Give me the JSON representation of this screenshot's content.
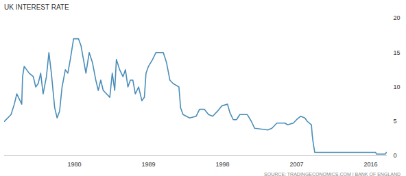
{
  "chart_data": {
    "type": "line",
    "title": "UK INTEREST RATE",
    "caption": "SOURCE: TRADINGECONOMICS.COM | BANK OF ENGLAND",
    "color": "#4a8db8",
    "grid": false,
    "x": [
      1971.5,
      1972.3,
      1972.7,
      1973.0,
      1973.4,
      1973.6,
      1973.7,
      1973.9,
      1974.5,
      1975.0,
      1975.3,
      1975.6,
      1975.9,
      1976.2,
      1976.6,
      1976.9,
      1977.2,
      1977.6,
      1977.9,
      1978.2,
      1978.5,
      1978.9,
      1979.2,
      1979.5,
      1979.9,
      1980.5,
      1980.8,
      1981.1,
      1981.4,
      1981.8,
      1982.2,
      1982.6,
      1982.9,
      1983.2,
      1983.5,
      1983.9,
      1984.3,
      1984.6,
      1984.9,
      1985.1,
      1985.5,
      1985.9,
      1986.2,
      1986.5,
      1986.8,
      1987.1,
      1987.4,
      1987.8,
      1988.2,
      1988.5,
      1988.7,
      1989.0,
      1989.5,
      1989.9,
      1990.8,
      1991.2,
      1991.6,
      1992.0,
      1992.7,
      1992.9,
      1993.2,
      1994.0,
      1994.8,
      1995.2,
      1995.8,
      1996.3,
      1996.8,
      1997.4,
      1997.9,
      1998.6,
      1998.9,
      1999.3,
      1999.7,
      2000.1,
      2001.0,
      2001.5,
      2001.9,
      2003.5,
      2004.0,
      2004.6,
      2005.6,
      2005.9,
      2006.6,
      2007.0,
      2007.5,
      2008.0,
      2008.3,
      2008.8,
      2008.9,
      2009.0,
      2009.2,
      2016.6,
      2016.7,
      2017.8,
      2017.9
    ],
    "values": [
      5,
      6,
      7.5,
      9,
      8,
      7.5,
      11.5,
      13,
      12,
      11.5,
      10,
      10.5,
      12,
      9,
      11.5,
      15,
      12,
      7,
      5.5,
      6.5,
      10,
      12.5,
      12,
      14,
      17,
      17,
      16,
      14,
      12,
      15,
      13.5,
      11,
      9.5,
      11,
      9.5,
      9,
      8.5,
      12,
      9.5,
      14,
      12.5,
      11.5,
      12.5,
      10,
      11,
      11,
      9,
      10,
      8,
      8.5,
      12,
      13,
      14,
      15,
      15,
      13.5,
      11,
      10.5,
      10,
      7,
      6,
      5.5,
      5.75,
      6.75,
      6.75,
      6,
      5.75,
      6.5,
      7.25,
      7.5,
      6.25,
      5.25,
      5.25,
      6,
      6,
      5,
      4,
      3.75,
      4,
      4.75,
      4.75,
      4.5,
      4.75,
      5.25,
      5.75,
      5.5,
      5,
      4.5,
      3,
      2,
      0.5,
      0.5,
      0.25,
      0.25,
      0.5
    ],
    "xlim": [
      1971.5,
      2018
    ],
    "xticks": [
      1980,
      1989,
      1998,
      2007,
      2016
    ],
    "ylim": [
      0,
      20
    ],
    "yticks": [
      0,
      5,
      10,
      15,
      20
    ]
  }
}
